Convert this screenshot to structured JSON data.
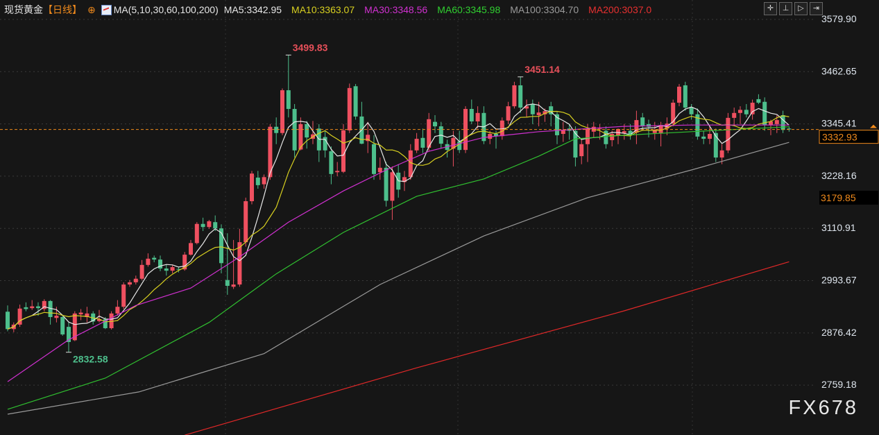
{
  "header": {
    "symbol": "现货黄金",
    "period": "【日线】",
    "period_icon": "crosshair-circle-icon",
    "ma_icon": "ma-chart-icon",
    "ma_params": "MA(5,10,30,60,100,200)",
    "ma_values": [
      {
        "label": "MA5:3342.95",
        "color": "#e8e8e8"
      },
      {
        "label": "MA10:3363.07",
        "color": "#d8d020"
      },
      {
        "label": "MA30:3348.56",
        "color": "#d030d0"
      },
      {
        "label": "MA60:3345.98",
        "color": "#30d030"
      },
      {
        "label": "MA100:3304.70",
        "color": "#9a9a9a"
      },
      {
        "label": "MA200:3037.0",
        "color": "#e83030"
      }
    ]
  },
  "toolbar": [
    {
      "name": "crosshair-icon",
      "glyph": "✛"
    },
    {
      "name": "zoom-range-icon",
      "glyph": "⊥"
    },
    {
      "name": "play-icon",
      "glyph": "▷"
    },
    {
      "name": "move-right-icon",
      "glyph": "⇥"
    }
  ],
  "watermark": "FX678",
  "chart_data": {
    "type": "candlestick",
    "y_ticks": [
      "3579.90",
      "3462.65",
      "3345.41",
      "3228.16",
      "3110.91",
      "2993.67",
      "2876.42",
      "2759.18"
    ],
    "ylim": [
      2647,
      3603
    ],
    "current_price": "3332.93",
    "marked_price": "3179.85",
    "annotations": [
      {
        "index": 46,
        "text": "3499.83",
        "kind": "high"
      },
      {
        "index": 84,
        "text": "3451.14",
        "kind": "high"
      },
      {
        "index": 10,
        "text": "2832.58",
        "kind": "low"
      }
    ],
    "colors": {
      "up": "#ef5060",
      "down": "#4dbf8c",
      "current": "#f08a1c"
    },
    "candles_ohlc": [
      [
        2924,
        2938,
        2880,
        2885
      ],
      [
        2885,
        2900,
        2878,
        2895
      ],
      [
        2895,
        2940,
        2890,
        2931
      ],
      [
        2934,
        2945,
        2925,
        2930
      ],
      [
        2932,
        2950,
        2928,
        2936
      ],
      [
        2936,
        2945,
        2915,
        2932
      ],
      [
        2930,
        2952,
        2925,
        2948
      ],
      [
        2948,
        2950,
        2895,
        2912
      ],
      [
        2910,
        2935,
        2900,
        2915
      ],
      [
        2912,
        2915,
        2870,
        2873
      ],
      [
        2890,
        2900,
        2833,
        2856
      ],
      [
        2860,
        2925,
        2858,
        2920
      ],
      [
        2918,
        2930,
        2905,
        2922
      ],
      [
        2912,
        2935,
        2900,
        2920
      ],
      [
        2920,
        2925,
        2895,
        2902
      ],
      [
        2903,
        2928,
        2900,
        2907
      ],
      [
        2907,
        2912,
        2885,
        2887
      ],
      [
        2887,
        2925,
        2884,
        2920
      ],
      [
        2920,
        2950,
        2915,
        2935
      ],
      [
        2935,
        2990,
        2930,
        2985
      ],
      [
        2985,
        2995,
        2980,
        2990
      ],
      [
        2990,
        3005,
        2985,
        2998
      ],
      [
        2998,
        3040,
        2995,
        3029
      ],
      [
        3029,
        3055,
        3025,
        3043
      ],
      [
        3045,
        3050,
        3035,
        3041
      ],
      [
        3041,
        3050,
        3015,
        3021
      ],
      [
        3021,
        3030,
        3005,
        3016
      ],
      [
        3016,
        3028,
        3010,
        3024
      ],
      [
        3020,
        3025,
        3012,
        3019
      ],
      [
        3019,
        3058,
        3016,
        3052
      ],
      [
        3052,
        3085,
        3050,
        3078
      ],
      [
        3078,
        3125,
        3075,
        3121
      ],
      [
        3121,
        3135,
        3105,
        3114
      ],
      [
        3114,
        3130,
        3110,
        3127
      ],
      [
        3125,
        3140,
        3105,
        3111
      ],
      [
        3111,
        3120,
        3010,
        3033
      ],
      [
        2995,
        3100,
        2962,
        2982
      ],
      [
        2980,
        3085,
        2975,
        2985
      ],
      [
        2985,
        3110,
        2980,
        3080
      ],
      [
        3080,
        3180,
        3070,
        3172
      ],
      [
        3172,
        3240,
        3165,
        3234
      ],
      [
        3225,
        3240,
        3200,
        3208
      ],
      [
        3210,
        3232,
        3200,
        3226
      ],
      [
        3226,
        3345,
        3220,
        3339
      ],
      [
        3339,
        3360,
        3300,
        3325
      ],
      [
        3325,
        3425,
        3320,
        3421
      ],
      [
        3421,
        3500,
        3360,
        3379
      ],
      [
        3379,
        3390,
        3270,
        3286
      ],
      [
        3288,
        3360,
        3286,
        3345
      ],
      [
        3345,
        3352,
        3290,
        3315
      ],
      [
        3312,
        3352,
        3300,
        3322
      ],
      [
        3335,
        3345,
        3260,
        3286
      ],
      [
        3316,
        3330,
        3270,
        3286
      ],
      [
        3284,
        3295,
        3210,
        3233
      ],
      [
        3237,
        3260,
        3228,
        3240
      ],
      [
        3238,
        3345,
        3235,
        3331
      ],
      [
        3331,
        3436,
        3325,
        3426
      ],
      [
        3430,
        3435,
        3355,
        3362
      ],
      [
        3362,
        3395,
        3300,
        3301
      ],
      [
        3307,
        3350,
        3280,
        3321
      ],
      [
        3300,
        3320,
        3220,
        3233
      ],
      [
        3237,
        3270,
        3220,
        3247
      ],
      [
        3247,
        3260,
        3160,
        3173
      ],
      [
        3173,
        3250,
        3130,
        3237
      ],
      [
        3236,
        3255,
        3180,
        3198
      ],
      [
        3215,
        3240,
        3195,
        3226
      ],
      [
        3226,
        3300,
        3220,
        3286
      ],
      [
        3286,
        3325,
        3280,
        3312
      ],
      [
        3314,
        3335,
        3280,
        3292
      ],
      [
        3292,
        3370,
        3285,
        3356
      ],
      [
        3350,
        3365,
        3325,
        3340
      ],
      [
        3340,
        3350,
        3290,
        3301
      ],
      [
        3300,
        3310,
        3270,
        3287
      ],
      [
        3290,
        3330,
        3250,
        3314
      ],
      [
        3306,
        3330,
        3280,
        3287
      ],
      [
        3287,
        3385,
        3280,
        3379
      ],
      [
        3379,
        3400,
        3345,
        3351
      ],
      [
        3351,
        3385,
        3335,
        3370
      ],
      [
        3370,
        3385,
        3300,
        3307
      ],
      [
        3312,
        3330,
        3300,
        3323
      ],
      [
        3323,
        3330,
        3290,
        3318
      ],
      [
        3318,
        3360,
        3310,
        3353
      ],
      [
        3353,
        3395,
        3345,
        3385
      ],
      [
        3385,
        3440,
        3380,
        3432
      ],
      [
        3432,
        3451,
        3370,
        3382
      ],
      [
        3380,
        3400,
        3360,
        3385
      ],
      [
        3390,
        3400,
        3345,
        3367
      ],
      [
        3365,
        3395,
        3340,
        3371
      ],
      [
        3367,
        3380,
        3350,
        3374
      ],
      [
        3385,
        3395,
        3340,
        3367
      ],
      [
        3367,
        3372,
        3300,
        3320
      ],
      [
        3323,
        3350,
        3305,
        3332
      ],
      [
        3335,
        3345,
        3310,
        3330
      ],
      [
        3330,
        3340,
        3250,
        3270
      ],
      [
        3273,
        3310,
        3255,
        3300
      ],
      [
        3300,
        3345,
        3260,
        3335
      ],
      [
        3328,
        3350,
        3315,
        3339
      ],
      [
        3334,
        3345,
        3310,
        3335
      ],
      [
        3330,
        3340,
        3290,
        3300
      ],
      [
        3309,
        3330,
        3295,
        3323
      ],
      [
        3320,
        3335,
        3300,
        3334
      ],
      [
        3325,
        3345,
        3310,
        3329
      ],
      [
        3330,
        3345,
        3310,
        3320
      ],
      [
        3326,
        3375,
        3300,
        3354
      ],
      [
        3360,
        3370,
        3330,
        3340
      ],
      [
        3345,
        3355,
        3315,
        3339
      ],
      [
        3325,
        3350,
        3310,
        3332
      ],
      [
        3325,
        3350,
        3295,
        3343
      ],
      [
        3335,
        3360,
        3320,
        3346
      ],
      [
        3346,
        3400,
        3340,
        3393
      ],
      [
        3393,
        3435,
        3385,
        3429
      ],
      [
        3432,
        3440,
        3375,
        3382
      ],
      [
        3382,
        3390,
        3355,
        3367
      ],
      [
        3367,
        3380,
        3310,
        3317
      ],
      [
        3317,
        3330,
        3300,
        3312
      ],
      [
        3312,
        3340,
        3300,
        3323
      ],
      [
        3325,
        3335,
        3260,
        3270
      ],
      [
        3270,
        3300,
        3255,
        3286
      ],
      [
        3286,
        3370,
        3280,
        3359
      ],
      [
        3359,
        3382,
        3340,
        3370
      ],
      [
        3370,
        3385,
        3345,
        3377
      ],
      [
        3377,
        3390,
        3360,
        3367
      ],
      [
        3367,
        3400,
        3355,
        3393
      ],
      [
        3401,
        3412,
        3390,
        3393
      ],
      [
        3395,
        3405,
        3330,
        3343
      ],
      [
        3343,
        3355,
        3320,
        3351
      ],
      [
        3345,
        3365,
        3325,
        3354
      ],
      [
        3365,
        3375,
        3325,
        3332
      ],
      [
        3335,
        3340,
        3328,
        3333
      ]
    ],
    "moving_averages": [
      {
        "name": "MA5",
        "color": "#e8e8e8",
        "computed_from_closes": 5
      },
      {
        "name": "MA10",
        "color": "#d8d020",
        "computed_from_closes": 10
      },
      {
        "name": "MA30",
        "color": "#d030d0",
        "points": [
          [
            0,
            2767
          ],
          [
            10,
            2861
          ],
          [
            21,
            2938
          ],
          [
            30,
            2977
          ],
          [
            38,
            3047
          ],
          [
            46,
            3125
          ],
          [
            55,
            3195
          ],
          [
            62,
            3242
          ],
          [
            69,
            3284
          ],
          [
            78,
            3315
          ],
          [
            87,
            3328
          ],
          [
            101,
            3340
          ],
          [
            112,
            3343
          ],
          [
            128,
            3343
          ]
        ]
      },
      {
        "name": "MA60",
        "color": "#30c030",
        "points": [
          [
            0,
            2705
          ],
          [
            16,
            2775
          ],
          [
            33,
            2900
          ],
          [
            44,
            3009
          ],
          [
            55,
            3102
          ],
          [
            67,
            3183
          ],
          [
            78,
            3222
          ],
          [
            87,
            3273
          ],
          [
            93,
            3312
          ],
          [
            101,
            3320
          ],
          [
            112,
            3328
          ],
          [
            128,
            3339
          ]
        ]
      },
      {
        "name": "MA100",
        "color": "#9a9a9a",
        "points": [
          [
            0,
            2694
          ],
          [
            21.5,
            2744
          ],
          [
            42,
            2830
          ],
          [
            61,
            2985
          ],
          [
            78,
            3094
          ],
          [
            95,
            3180
          ],
          [
            112,
            3242
          ],
          [
            128,
            3304
          ]
        ]
      },
      {
        "name": "MA200",
        "color": "#e02828",
        "points": [
          [
            29,
            2647
          ],
          [
            67,
            2798
          ],
          [
            101,
            2926
          ],
          [
            128,
            3036
          ]
        ]
      }
    ]
  }
}
